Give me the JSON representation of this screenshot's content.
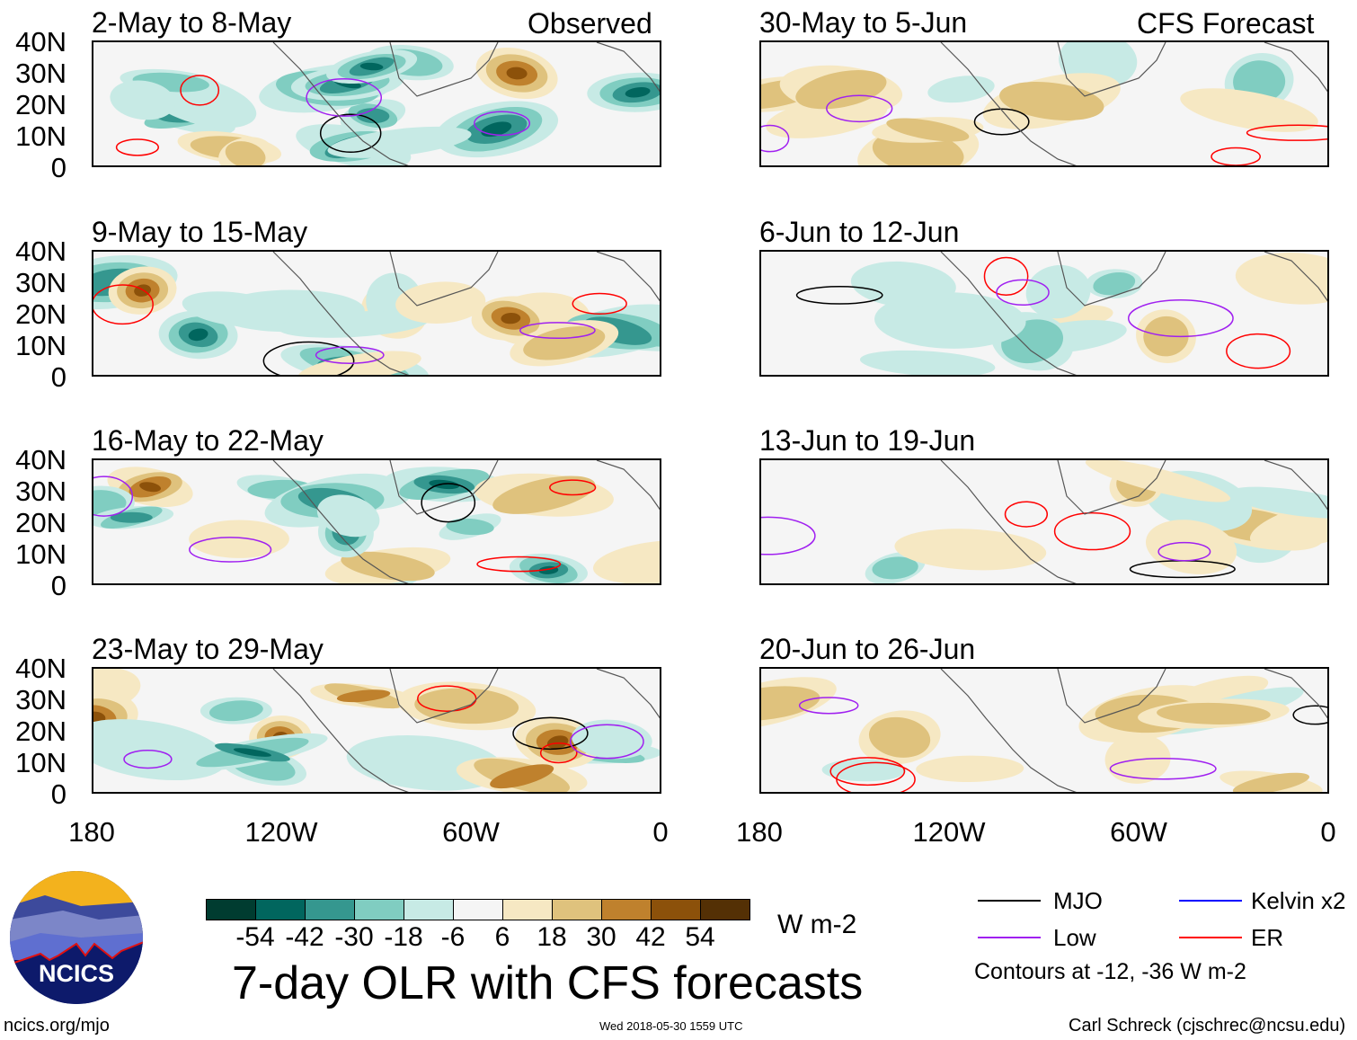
{
  "header": {
    "observed_label": "Observed",
    "forecast_label": "CFS Forecast"
  },
  "panels_observed": [
    {
      "title": "2-May to 8-May"
    },
    {
      "title": "9-May to 15-May"
    },
    {
      "title": "16-May to 22-May"
    },
    {
      "title": "23-May to 29-May"
    }
  ],
  "panels_forecast": [
    {
      "title": "30-May to 5-Jun"
    },
    {
      "title": "6-Jun to 12-Jun"
    },
    {
      "title": "13-Jun to 19-Jun"
    },
    {
      "title": "20-Jun to 26-Jun"
    }
  ],
  "axes": {
    "lat_labels": [
      "40N",
      "30N",
      "20N",
      "10N",
      "0"
    ],
    "lon_labels": [
      "180",
      "120W",
      "60W",
      "0"
    ]
  },
  "colorbar": {
    "levels": [
      "-54",
      "-42",
      "-30",
      "-18",
      "-6",
      "6",
      "18",
      "30",
      "42",
      "54"
    ],
    "colors": [
      "#003c30",
      "#01665e",
      "#35978f",
      "#80cdc1",
      "#c7eae5",
      "#f5f5f5",
      "#f6e8c3",
      "#dfc27d",
      "#bf812d",
      "#8c510a",
      "#543005"
    ],
    "units": "W m-2"
  },
  "legend": {
    "items": [
      {
        "label": "MJO",
        "color": "#000000"
      },
      {
        "label": "Kelvin x2",
        "color": "#0000ff"
      },
      {
        "label": "Low",
        "color": "#a020f0"
      },
      {
        "label": "ER",
        "color": "#ff0000"
      }
    ],
    "contours_note": "Contours at -12, -36 W m-2"
  },
  "footer": {
    "title": "7-day OLR with CFS forecasts",
    "logo_text": "NCICS",
    "url": "ncics.org/mjo",
    "timestamp": "Wed 2018-05-30 1559 UTC",
    "credit": "Carl Schreck (cjschrec@ncsu.edu)"
  }
}
